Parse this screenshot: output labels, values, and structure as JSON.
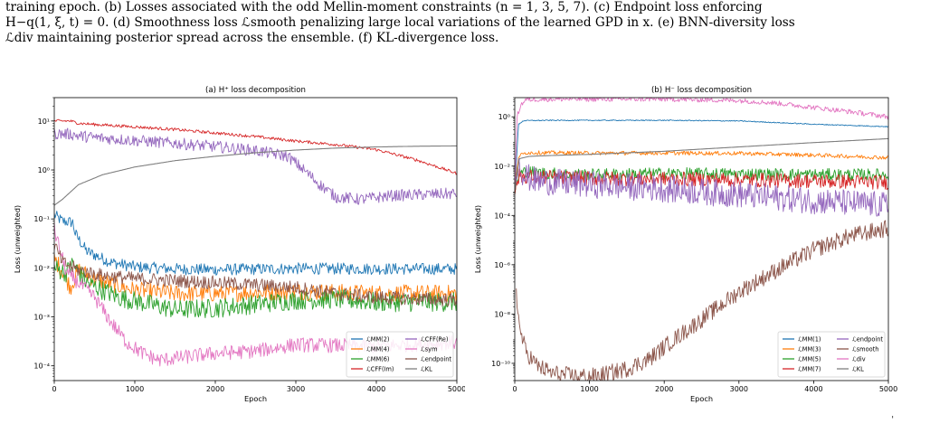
{
  "caption": {
    "line1": "training epoch. (b) Losses associated with the odd Mellin-moment constraints (n = 1, 3, 5, 7). (c) Endpoint loss enforcing",
    "line2": "H−q(1, ξ, t) = 0. (d) Smoothness loss ℒsmooth penalizing large local variations of the learned GPD in x. (e) BNN-diversity loss",
    "line3": "ℒdiv maintaining posterior spread across the ensemble. (f) KL-divergence loss."
  },
  "page_mark": "'",
  "colors": {
    "blue": "#1f77b4",
    "orange": "#ff7f0e",
    "green": "#2ca02c",
    "red": "#d62728",
    "purple": "#9467bd",
    "brown": "#8c564b",
    "pink": "#e377c2",
    "gray": "#7f7f7f"
  },
  "chart_data": [
    {
      "type": "line",
      "title": "(a) H⁺ loss decomposition",
      "xlabel": "Epoch",
      "ylabel": "Loss (unweighted)",
      "yscale": "log",
      "xlim": [
        0,
        5000
      ],
      "ylim": [
        5e-05,
        30
      ],
      "xticks": [
        "0",
        "1000",
        "2000",
        "3000",
        "4000",
        "5000"
      ],
      "yticks": [
        "10⁻⁴",
        "10⁻³",
        "10⁻²",
        "10⁻¹",
        "10⁰",
        "10¹"
      ],
      "legend_position": "bottom-right",
      "series": [
        {
          "name": "ℒMM(2)",
          "color": "blue",
          "noise": 0.12,
          "points": [
            [
              0,
              0.12
            ],
            [
              100,
              0.09
            ],
            [
              230,
              0.085
            ],
            [
              260,
              0.05
            ],
            [
              400,
              0.022
            ],
            [
              700,
              0.013
            ],
            [
              1000,
              0.0105
            ],
            [
              1500,
              0.0095
            ],
            [
              2000,
              0.0092
            ],
            [
              3000,
              0.0097
            ],
            [
              4000,
              0.0096
            ],
            [
              5000,
              0.0095
            ]
          ]
        },
        {
          "name": "ℒMM(4)",
          "color": "orange",
          "noise": 0.18,
          "points": [
            [
              0,
              0.015
            ],
            [
              100,
              0.009
            ],
            [
              200,
              0.004
            ],
            [
              300,
              0.009
            ],
            [
              500,
              0.006
            ],
            [
              1000,
              0.0035
            ],
            [
              1500,
              0.003
            ],
            [
              2000,
              0.003
            ],
            [
              3000,
              0.0033
            ],
            [
              4000,
              0.003
            ],
            [
              5000,
              0.003
            ]
          ]
        },
        {
          "name": "ℒMM(6)",
          "color": "green",
          "noise": 0.2,
          "points": [
            [
              0,
              0.01
            ],
            [
              150,
              0.008
            ],
            [
              230,
              0.012
            ],
            [
              400,
              0.005
            ],
            [
              800,
              0.0025
            ],
            [
              1500,
              0.0014
            ],
            [
              2000,
              0.0015
            ],
            [
              3000,
              0.0022
            ],
            [
              3500,
              0.0023
            ],
            [
              4000,
              0.002
            ],
            [
              5000,
              0.002
            ]
          ]
        },
        {
          "name": "ℒCFF(Im)",
          "color": "red",
          "noise": 0.03,
          "points": [
            [
              0,
              10
            ],
            [
              200,
              10
            ],
            [
              300,
              9
            ],
            [
              500,
              8.5
            ],
            [
              1000,
              7.6
            ],
            [
              1500,
              6.7
            ],
            [
              2000,
              5.7
            ],
            [
              2500,
              4.8
            ],
            [
              3000,
              3.9
            ],
            [
              3500,
              3.3
            ],
            [
              4000,
              2.6
            ],
            [
              4500,
              1.6
            ],
            [
              5000,
              0.85
            ]
          ]
        },
        {
          "name": "ℒCFF(Re)",
          "color": "purple",
          "noise": 0.12,
          "points": [
            [
              0,
              5.5
            ],
            [
              200,
              5.4
            ],
            [
              300,
              5
            ],
            [
              500,
              4.6
            ],
            [
              1000,
              4
            ],
            [
              1500,
              3.5
            ],
            [
              2000,
              3
            ],
            [
              2500,
              2.5
            ],
            [
              2900,
              1.9
            ],
            [
              3100,
              1
            ],
            [
              3300,
              0.5
            ],
            [
              3500,
              0.28
            ],
            [
              3800,
              0.25
            ],
            [
              4200,
              0.3
            ],
            [
              5000,
              0.33
            ]
          ]
        },
        {
          "name": "ℒsym",
          "color": "pink",
          "noise": 0.15,
          "points": [
            [
              0,
              0.06
            ],
            [
              150,
              0.008
            ],
            [
              300,
              0.005
            ],
            [
              500,
              0.0025
            ],
            [
              700,
              0.0008
            ],
            [
              900,
              0.0003
            ],
            [
              1100,
              0.00018
            ],
            [
              1300,
              0.00013
            ],
            [
              1600,
              0.00015
            ],
            [
              2000,
              0.00018
            ],
            [
              2500,
              0.0002
            ],
            [
              3000,
              0.00027
            ],
            [
              4000,
              0.00025
            ],
            [
              5000,
              0.0003
            ]
          ]
        },
        {
          "name": "ℒendpoint",
          "color": "brown",
          "noise": 0.14,
          "points": [
            [
              0,
              0.03
            ],
            [
              100,
              0.013
            ],
            [
              300,
              0.009
            ],
            [
              600,
              0.007
            ],
            [
              1000,
              0.006
            ],
            [
              1500,
              0.0055
            ],
            [
              2000,
              0.005
            ],
            [
              3000,
              0.004
            ],
            [
              3500,
              0.003
            ],
            [
              4000,
              0.0025
            ],
            [
              5000,
              0.0022
            ]
          ]
        },
        {
          "name": "ℒKL",
          "color": "gray",
          "noise": 0,
          "points": [
            [
              0,
              0.19
            ],
            [
              100,
              0.25
            ],
            [
              300,
              0.5
            ],
            [
              600,
              0.8
            ],
            [
              1000,
              1.15
            ],
            [
              1500,
              1.55
            ],
            [
              2000,
              1.9
            ],
            [
              2500,
              2.25
            ],
            [
              3000,
              2.55
            ],
            [
              3500,
              2.8
            ],
            [
              4000,
              2.95
            ],
            [
              4500,
              3.05
            ],
            [
              5000,
              3.1
            ]
          ]
        }
      ],
      "legend": [
        [
          "ℒMM(2)",
          "blue"
        ],
        [
          "ℒMM(4)",
          "orange"
        ],
        [
          "ℒMM(6)",
          "green"
        ],
        [
          "ℒCFF(Im)",
          "red"
        ],
        [
          "ℒCFF(Re)",
          "purple"
        ],
        [
          "ℒsym",
          "pink"
        ],
        [
          "ℒendpoint",
          "brown"
        ],
        [
          "ℒKL",
          "gray"
        ]
      ]
    },
    {
      "type": "line",
      "title": "(b) H⁻ loss decomposition",
      "xlabel": "Epoch",
      "ylabel": "Loss (unweighted)",
      "yscale": "log",
      "xlim": [
        0,
        5000
      ],
      "ylim": [
        2e-11,
        6
      ],
      "xticks": [
        "0",
        "1000",
        "2000",
        "3000",
        "4000",
        "5000"
      ],
      "yticks": [
        "10⁻¹⁰",
        "10⁻⁸",
        "10⁻⁶",
        "10⁻⁴",
        "10⁻²",
        "10⁰"
      ],
      "legend_position": "bottom-right",
      "series": [
        {
          "name": "ℒMM(1)",
          "color": "blue",
          "noise": 0.02,
          "points": [
            [
              0,
              0.001
            ],
            [
              50,
              0.5
            ],
            [
              120,
              0.7
            ],
            [
              500,
              0.72
            ],
            [
              1000,
              0.72
            ],
            [
              2000,
              0.72
            ],
            [
              3000,
              0.68
            ],
            [
              4000,
              0.5
            ],
            [
              5000,
              0.4
            ]
          ]
        },
        {
          "name": "ℒMM(3)",
          "color": "orange",
          "noise": 0.08,
          "points": [
            [
              0,
              0.001
            ],
            [
              50,
              0.025
            ],
            [
              150,
              0.035
            ],
            [
              500,
              0.035
            ],
            [
              1000,
              0.034
            ],
            [
              2000,
              0.034
            ],
            [
              3000,
              0.033
            ],
            [
              4000,
              0.028
            ],
            [
              5000,
              0.022
            ]
          ]
        },
        {
          "name": "ℒMM(5)",
          "color": "green",
          "noise": 0.25,
          "points": [
            [
              0,
              0.001
            ],
            [
              60,
              0.005
            ],
            [
              150,
              0.006
            ],
            [
              500,
              0.005
            ],
            [
              1000,
              0.0045
            ],
            [
              2000,
              0.005
            ],
            [
              3000,
              0.0048
            ],
            [
              4000,
              0.0045
            ],
            [
              5000,
              0.0045
            ]
          ]
        },
        {
          "name": "ℒMM(7)",
          "color": "red",
          "noise": 0.3,
          "points": [
            [
              0,
              0.001
            ],
            [
              60,
              0.004
            ],
            [
              500,
              0.0035
            ],
            [
              1000,
              0.0032
            ],
            [
              2000,
              0.003
            ],
            [
              3000,
              0.0028
            ],
            [
              4000,
              0.0025
            ],
            [
              5000,
              0.0022
            ]
          ]
        },
        {
          "name": "ℒendpoint",
          "color": "purple",
          "noise": 0.55,
          "points": [
            [
              0,
              0.001
            ],
            [
              50,
              0.02
            ],
            [
              120,
              0.004
            ],
            [
              300,
              0.0025
            ],
            [
              700,
              0.002
            ],
            [
              1000,
              0.0018
            ],
            [
              2000,
              0.0012
            ],
            [
              3000,
              0.0007
            ],
            [
              4000,
              0.0004
            ],
            [
              5000,
              0.00025
            ]
          ]
        },
        {
          "name": "ℒsmooth",
          "color": "brown",
          "noise": 0.35,
          "points": [
            [
              20,
              1e-07
            ],
            [
              60,
              3e-09
            ],
            [
              150,
              3e-10
            ],
            [
              300,
              8e-11
            ],
            [
              500,
              4e-11
            ],
            [
              800,
              3e-11
            ],
            [
              1100,
              3e-11
            ],
            [
              1500,
              6e-11
            ],
            [
              1800,
              1.5e-10
            ],
            [
              2100,
              8e-10
            ],
            [
              2500,
              6e-09
            ],
            [
              3000,
              8e-08
            ],
            [
              3500,
              6e-07
            ],
            [
              4000,
              4e-06
            ],
            [
              4500,
              1.5e-05
            ],
            [
              5000,
              3e-05
            ]
          ]
        },
        {
          "name": "ℒdiv",
          "color": "pink",
          "noise": 0.1,
          "points": [
            [
              0,
              0.001
            ],
            [
              30,
              1
            ],
            [
              80,
              3
            ],
            [
              150,
              5
            ],
            [
              500,
              5.2
            ],
            [
              1000,
              5.2
            ],
            [
              2000,
              5.2
            ],
            [
              3000,
              4.6
            ],
            [
              3500,
              3.6
            ],
            [
              4000,
              2.4
            ],
            [
              4500,
              1.6
            ],
            [
              5000,
              1.0
            ]
          ]
        },
        {
          "name": "ℒKL",
          "color": "gray",
          "noise": 0,
          "points": [
            [
              0,
              0.001
            ],
            [
              60,
              0.02
            ],
            [
              200,
              0.025
            ],
            [
              500,
              0.027
            ],
            [
              1000,
              0.03
            ],
            [
              2000,
              0.04
            ],
            [
              3000,
              0.06
            ],
            [
              4000,
              0.09
            ],
            [
              5000,
              0.13
            ]
          ]
        }
      ],
      "legend": [
        [
          "ℒMM(1)",
          "blue"
        ],
        [
          "ℒMM(3)",
          "orange"
        ],
        [
          "ℒMM(5)",
          "green"
        ],
        [
          "ℒMM(7)",
          "red"
        ],
        [
          "ℒendpoint",
          "purple"
        ],
        [
          "ℒsmooth",
          "brown"
        ],
        [
          "ℒdiv",
          "pink"
        ],
        [
          "ℒKL",
          "gray"
        ]
      ]
    }
  ]
}
